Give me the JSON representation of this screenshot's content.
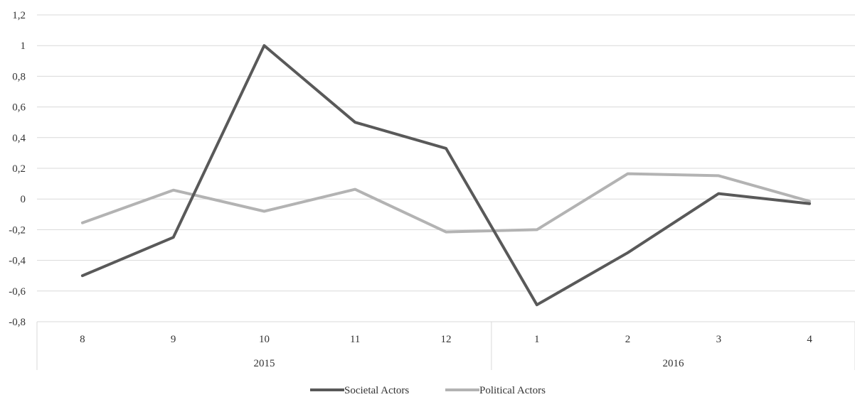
{
  "chart_data": {
    "type": "line",
    "title": "",
    "xlabel": "",
    "ylabel": "",
    "categories": [
      "8",
      "9",
      "10",
      "11",
      "12",
      "1",
      "2",
      "3",
      "4"
    ],
    "groups": [
      {
        "label": "2015",
        "count": 5
      },
      {
        "label": "2016",
        "count": 4
      }
    ],
    "ylim": [
      -0.8,
      1.2
    ],
    "yticks": [
      {
        "value": -0.8,
        "label": "-0,8"
      },
      {
        "value": -0.6,
        "label": "-0,6"
      },
      {
        "value": -0.4,
        "label": "-0,4"
      },
      {
        "value": -0.2,
        "label": "-0,2"
      },
      {
        "value": 0,
        "label": "0"
      },
      {
        "value": 0.2,
        "label": "0,2"
      },
      {
        "value": 0.4,
        "label": "0,4"
      },
      {
        "value": 0.6,
        "label": "0,6"
      },
      {
        "value": 0.8,
        "label": "0,8"
      },
      {
        "value": 1,
        "label": "1"
      },
      {
        "value": 1.2,
        "label": "1,2"
      }
    ],
    "grid": true,
    "legend_position": "bottom",
    "series": [
      {
        "name": "Societal Actors",
        "color": "#595959",
        "values": [
          -0.5,
          -0.25,
          1.0,
          0.5,
          0.33,
          -0.69,
          -0.35,
          0.035,
          -0.03
        ]
      },
      {
        "name": "Political Actors",
        "color": "#b3b3b3",
        "values": [
          -0.155,
          0.058,
          -0.08,
          0.063,
          -0.215,
          -0.2,
          0.165,
          0.152,
          -0.015
        ]
      }
    ]
  }
}
